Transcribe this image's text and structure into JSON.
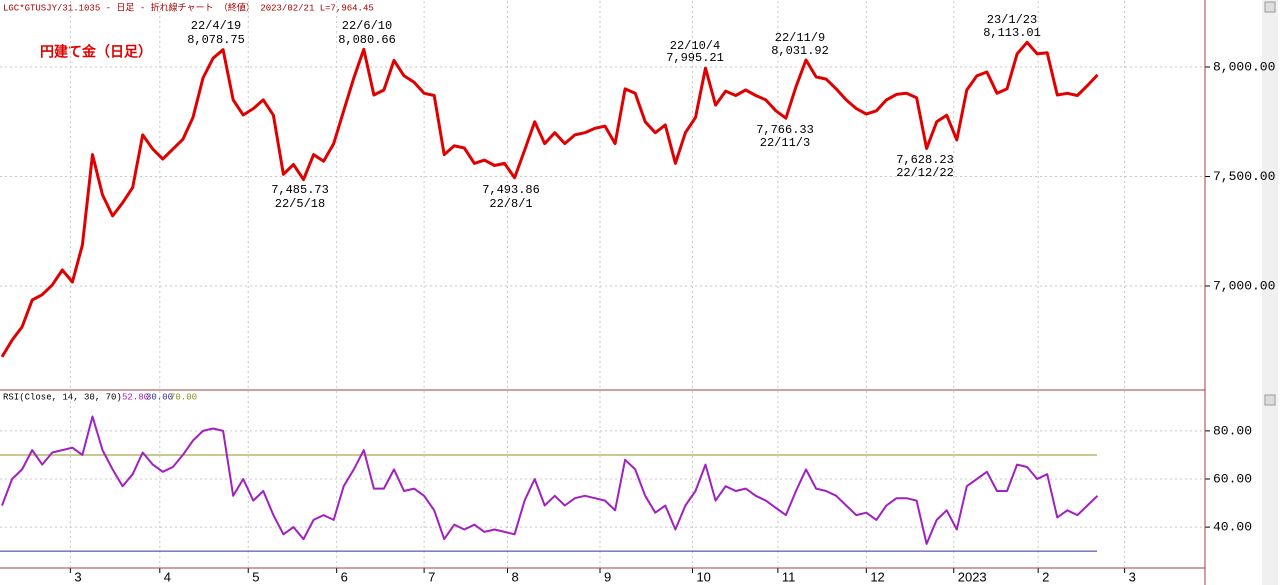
{
  "chart_data": [
    {
      "type": "line",
      "header": "LGC*GTUSJY/31.1035 - 日足 - 折れ線チャート （終値）  2023/02/21 L=7,964.45",
      "title": "円建て金（日足）",
      "series": [
        {
          "name": "円建て金",
          "color": "#e00000",
          "values": [
            6676,
            6753,
            6813,
            6936,
            6960,
            7005,
            7073,
            7018,
            7187,
            7600,
            7416,
            7320,
            7380,
            7450,
            7690,
            7625,
            7580,
            7625,
            7670,
            7770,
            7950,
            8040,
            8079,
            7850,
            7781,
            7810,
            7850,
            7780,
            7510,
            7555,
            7486,
            7600,
            7570,
            7650,
            7800,
            7950,
            8081,
            7872,
            7895,
            8030,
            7960,
            7930,
            7880,
            7870,
            7600,
            7640,
            7630,
            7560,
            7575,
            7550,
            7560,
            7494,
            7620,
            7750,
            7650,
            7700,
            7650,
            7690,
            7700,
            7720,
            7730,
            7650,
            7900,
            7880,
            7750,
            7700,
            7735,
            7560,
            7700,
            7770,
            7995,
            7826,
            7890,
            7870,
            7895,
            7870,
            7850,
            7800,
            7766,
            7910,
            8032,
            7955,
            7945,
            7900,
            7850,
            7810,
            7785,
            7800,
            7850,
            7875,
            7880,
            7860,
            7628,
            7750,
            7780,
            7667,
            7895,
            7960,
            7977,
            7880,
            7900,
            8060,
            8113,
            8060,
            8065,
            7872,
            7880,
            7870,
            7915,
            7964
          ]
        }
      ],
      "ylim": [
        6525,
        8306
      ],
      "yticks": [
        {
          "value": 7000,
          "label": "7,000.00"
        },
        {
          "value": 7500,
          "label": "7,500.00"
        },
        {
          "value": 8000,
          "label": "8,000.00"
        }
      ],
      "annotations": [
        [
          "22/4/19",
          "8,078.75"
        ],
        [
          "7,485.73",
          "22/5/18"
        ],
        [
          "22/6/10",
          "8,080.66"
        ],
        [
          "7,493.86",
          "22/8/1"
        ],
        [
          "22/10/4",
          "7,995.21"
        ],
        [
          "7,766.33",
          "22/11/3"
        ],
        [
          "22/11/9",
          "8,031.92"
        ],
        [
          "7,628.23",
          "22/12/22"
        ],
        [
          "23/1/23",
          "8,113.01"
        ]
      ],
      "grid": true
    },
    {
      "type": "line",
      "header": "RSI(Close, 14, 30, 70)",
      "series": [
        {
          "name": "RSI",
          "color": "#a020c0",
          "value_label": "52.80",
          "values": [
            49,
            60,
            64,
            72,
            66,
            71,
            72,
            73,
            70,
            86,
            72,
            64,
            57,
            62,
            71,
            66,
            63,
            65,
            70,
            76,
            80,
            81,
            80,
            53,
            60,
            51,
            55,
            45,
            37,
            40,
            35,
            43,
            45,
            43,
            57,
            64,
            72,
            56,
            56,
            64,
            55,
            56,
            53,
            47,
            35,
            41,
            39,
            41,
            38,
            39,
            38,
            37,
            51,
            60,
            49,
            53,
            49,
            52,
            53,
            52,
            51,
            47,
            68,
            64,
            53,
            46,
            49,
            39,
            49,
            55,
            66,
            51,
            57,
            55,
            56,
            53,
            51,
            48,
            45,
            55,
            64,
            56,
            55,
            53,
            49,
            45,
            46,
            43,
            49,
            52,
            52,
            51,
            33,
            43,
            47,
            39,
            57,
            60,
            63,
            55,
            55,
            66,
            65,
            60,
            62,
            44,
            47,
            45,
            49,
            53
          ]
        }
      ],
      "levels": [
        {
          "value": 30,
          "label": "30.00",
          "color": "#3030a0"
        },
        {
          "value": 70,
          "label": "70.00",
          "color": "#909020"
        }
      ],
      "ylim": [
        23,
        97
      ],
      "yticks": [
        {
          "value": 40,
          "label": "40.00"
        },
        {
          "value": 60,
          "label": "60.00"
        },
        {
          "value": 80,
          "label": "80.00"
        }
      ],
      "xlim": [
        -0.2,
        119.7
      ],
      "xticks": [
        {
          "value": 6.8,
          "label": "3"
        },
        {
          "value": 15.7,
          "label": "4"
        },
        {
          "value": 24.5,
          "label": "5"
        },
        {
          "value": 33.3,
          "label": "6"
        },
        {
          "value": 42,
          "label": "7"
        },
        {
          "value": 50.3,
          "label": "8"
        },
        {
          "value": 59.5,
          "label": "9"
        },
        {
          "value": 68.7,
          "label": "10"
        },
        {
          "value": 77.2,
          "label": "11"
        },
        {
          "value": 86,
          "label": "12"
        },
        {
          "value": 94.7,
          "label": "2023"
        },
        {
          "value": 103.1,
          "label": "2"
        },
        {
          "value": 111.7,
          "label": "3"
        }
      ],
      "grid": true
    }
  ]
}
